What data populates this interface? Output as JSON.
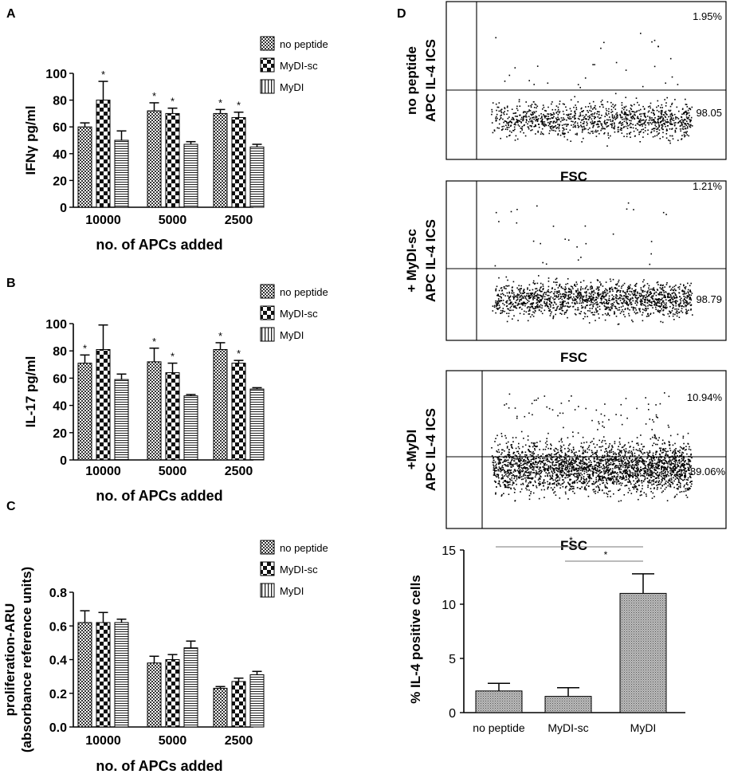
{
  "panels": {
    "A": "A",
    "B": "B",
    "C": "C",
    "D": "D"
  },
  "legend": {
    "no_peptide": "no peptide",
    "mydi_sc": "MyDI-sc",
    "mydi": "MyDI"
  },
  "flow": {
    "fsc_label": "FSC",
    "plots": [
      {
        "name": "no-peptide",
        "ylabel_line1": "no peptide",
        "ylabel_line2": "APC IL-4 ICS",
        "upper_pct": "1.95%",
        "lower_pct": "98.05",
        "dots": 1100,
        "seed": 11
      },
      {
        "name": "mydi-sc",
        "ylabel_line1": "+ MyDI-sc",
        "ylabel_line2": "APC IL-4 ICS",
        "upper_pct": "1.21%",
        "lower_pct": "98.79",
        "dots": 1500,
        "seed": 23
      },
      {
        "name": "mydi",
        "ylabel_line1": "+MyDI",
        "ylabel_line2": "APC IL-4 ICS",
        "upper_pct": "10.94%",
        "lower_pct": "89.06%",
        "dots": 2600,
        "seed": 37
      }
    ]
  },
  "chart_data": [
    {
      "id": "A",
      "type": "bar",
      "categories": [
        "10000",
        "5000",
        "2500"
      ],
      "series": [
        {
          "name": "no peptide",
          "values": [
            60,
            72,
            70
          ],
          "errors": [
            3,
            6,
            3
          ]
        },
        {
          "name": "MyDI-sc",
          "values": [
            80,
            70,
            67
          ],
          "errors": [
            14,
            4,
            4
          ]
        },
        {
          "name": "MyDI",
          "values": [
            50,
            47,
            45
          ],
          "errors": [
            7,
            2,
            2
          ]
        }
      ],
      "stars": [
        [
          false,
          true,
          true
        ],
        [
          true,
          true,
          true
        ],
        [
          false,
          false,
          false
        ]
      ],
      "ylabel": "IFNγ pg/ml",
      "xlabel": "no. of APCs added",
      "ylim": [
        0,
        100
      ],
      "yticks": [
        "0",
        "20",
        "40",
        "60",
        "80",
        "100"
      ]
    },
    {
      "id": "B",
      "type": "bar",
      "categories": [
        "10000",
        "5000",
        "2500"
      ],
      "series": [
        {
          "name": "no peptide",
          "values": [
            71,
            72,
            81
          ],
          "errors": [
            6,
            10,
            5
          ]
        },
        {
          "name": "MyDI-sc",
          "values": [
            81,
            64,
            71
          ],
          "errors": [
            18,
            7,
            2
          ]
        },
        {
          "name": "MyDI",
          "values": [
            59,
            47,
            52
          ],
          "errors": [
            4,
            1,
            1
          ]
        }
      ],
      "stars": [
        [
          true,
          true,
          true
        ],
        [
          false,
          true,
          true
        ],
        [
          false,
          false,
          false
        ]
      ],
      "ylabel": "IL-17 pg/ml",
      "xlabel": "no. of APCs added",
      "ylim": [
        0,
        100
      ],
      "yticks": [
        "0",
        "20",
        "40",
        "60",
        "80",
        "100"
      ]
    },
    {
      "id": "C",
      "type": "bar",
      "categories": [
        "10000",
        "5000",
        "2500"
      ],
      "series": [
        {
          "name": "no peptide",
          "values": [
            0.62,
            0.38,
            0.23
          ],
          "errors": [
            0.07,
            0.04,
            0.01
          ]
        },
        {
          "name": "MyDI-sc",
          "values": [
            0.62,
            0.4,
            0.27
          ],
          "errors": [
            0.06,
            0.03,
            0.02
          ]
        },
        {
          "name": "MyDI",
          "values": [
            0.62,
            0.47,
            0.31
          ],
          "errors": [
            0.02,
            0.04,
            0.02
          ]
        }
      ],
      "stars": [
        [
          false,
          false,
          false
        ],
        [
          false,
          false,
          false
        ],
        [
          false,
          false,
          false
        ]
      ],
      "ylabel": "proliferation-ARU",
      "ylabel2": "(absorbance reference units)",
      "xlabel": "no. of APCs added",
      "ylim": [
        0,
        0.8
      ],
      "yticks": [
        "0.0",
        "0.2",
        "0.4",
        "0.6",
        "0.8"
      ]
    },
    {
      "id": "D",
      "type": "bar",
      "categories": [
        "no peptide",
        "MyDI-sc",
        "MyDI"
      ],
      "values": [
        2.0,
        1.5,
        11.0
      ],
      "errors": [
        0.7,
        0.8,
        1.8
      ],
      "ylabel": "% IL-4 positive cells",
      "ylim": [
        0,
        15
      ],
      "yticks": [
        "0",
        "5",
        "10",
        "15"
      ],
      "significance": [
        {
          "from": "no peptide",
          "to": "MyDI",
          "label": "*"
        },
        {
          "from": "MyDI-sc",
          "to": "MyDI",
          "label": "*"
        }
      ]
    }
  ]
}
